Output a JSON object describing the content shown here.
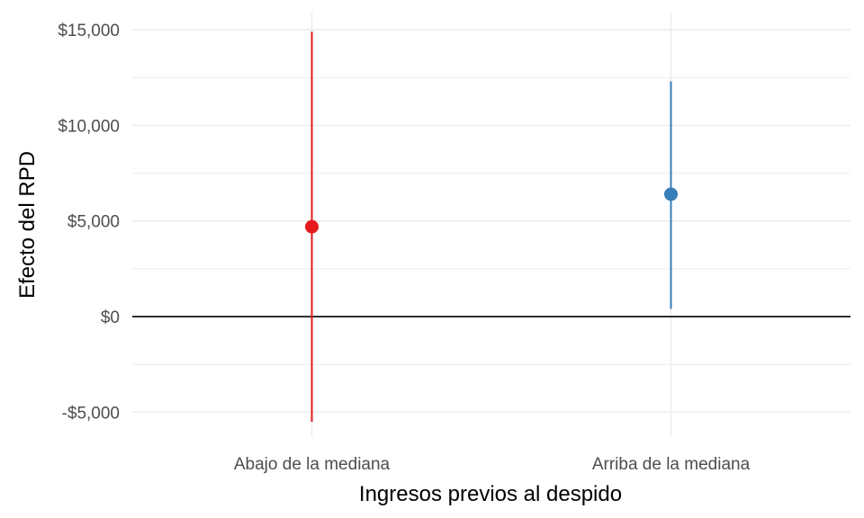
{
  "chart_data": {
    "type": "pointrange",
    "xlabel": "Ingresos previos al despido",
    "ylabel": "Efecto del RPD",
    "categories": [
      "Abajo de la mediana",
      "Arriba de la mediana"
    ],
    "points": [
      {
        "category": "Abajo de la mediana",
        "estimate": 4700,
        "lower": -5500,
        "upper": 14900,
        "color": "#e41a1c"
      },
      {
        "category": "Arriba de la mediana",
        "estimate": 6400,
        "lower": 400,
        "upper": 12300,
        "color": "#377eb8"
      }
    ],
    "ylim": [
      -6300,
      15900
    ],
    "yticks": [
      -5000,
      0,
      5000,
      10000,
      15000
    ],
    "ytick_labels": [
      "-$5,000",
      "$0",
      "$5,000",
      "$10,000",
      "$15,000"
    ],
    "reference_line": 0,
    "grid": true,
    "legend": "none"
  }
}
